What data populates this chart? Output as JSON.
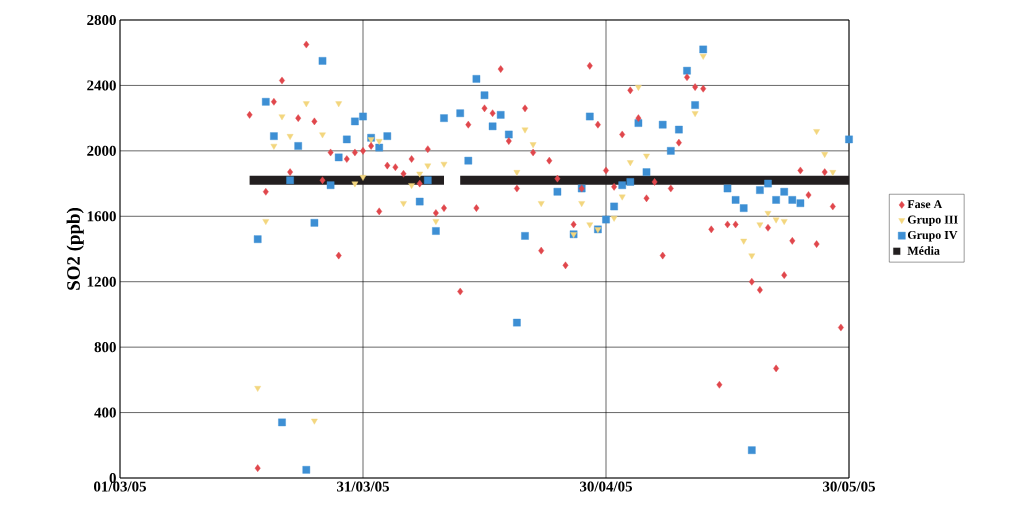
{
  "chart_data": {
    "type": "scatter",
    "ylabel": "SO2 (ppb)",
    "xlim": [
      "2005-03-01",
      "2005-05-30"
    ],
    "ylim": [
      0,
      2800
    ],
    "xticks": [
      {
        "value": "2005-03-01",
        "label": "01/03/05"
      },
      {
        "value": "2005-03-31",
        "label": "31/03/05"
      },
      {
        "value": "2005-04-30",
        "label": "30/04/05"
      },
      {
        "value": "2005-05-30",
        "label": "30/05/05"
      }
    ],
    "yticks": [
      0,
      400,
      800,
      1200,
      1600,
      2000,
      2400,
      2800
    ],
    "grid": true,
    "legend": "right",
    "series": [
      {
        "name": "Fase A",
        "color": "#e0474c",
        "marker": "diamond",
        "x": [
          "2005-03-17",
          "2005-03-18",
          "2005-03-19",
          "2005-03-20",
          "2005-03-21",
          "2005-03-22",
          "2005-03-23",
          "2005-03-24",
          "2005-03-25",
          "2005-03-26",
          "2005-03-27",
          "2005-03-28",
          "2005-03-29",
          "2005-03-30",
          "2005-03-31",
          "2005-04-01",
          "2005-04-02",
          "2005-04-03",
          "2005-04-04",
          "2005-04-05",
          "2005-04-06",
          "2005-04-07",
          "2005-04-08",
          "2005-04-09",
          "2005-04-10",
          "2005-04-12",
          "2005-04-13",
          "2005-04-14",
          "2005-04-15",
          "2005-04-16",
          "2005-04-17",
          "2005-04-18",
          "2005-04-19",
          "2005-04-20",
          "2005-04-21",
          "2005-04-22",
          "2005-04-23",
          "2005-04-24",
          "2005-04-25",
          "2005-04-26",
          "2005-04-27",
          "2005-04-28",
          "2005-04-29",
          "2005-04-30",
          "2005-05-01",
          "2005-05-02",
          "2005-05-03",
          "2005-05-04",
          "2005-05-05",
          "2005-05-06",
          "2005-05-07",
          "2005-05-08",
          "2005-05-09",
          "2005-05-10",
          "2005-05-11",
          "2005-05-12",
          "2005-05-13",
          "2005-05-14",
          "2005-05-15",
          "2005-05-16",
          "2005-05-18",
          "2005-05-19",
          "2005-05-20",
          "2005-05-21",
          "2005-05-22",
          "2005-05-23",
          "2005-05-24",
          "2005-05-25",
          "2005-05-26",
          "2005-05-27",
          "2005-05-28",
          "2005-05-29"
        ],
        "values": [
          2220,
          60,
          1750,
          2300,
          2430,
          1870,
          2200,
          2650,
          2180,
          1820,
          1990,
          1360,
          1950,
          1990,
          2000,
          2030,
          1630,
          1910,
          1900,
          1860,
          1950,
          1800,
          2010,
          1620,
          1650,
          1140,
          2160,
          1650,
          2260,
          2230,
          2500,
          2060,
          1770,
          2260,
          1990,
          1390,
          1940,
          1830,
          1300,
          1550,
          1770,
          2520,
          2160,
          1880,
          1780,
          2100,
          2370,
          2200,
          1710,
          1810,
          1360,
          1770,
          2050,
          2450,
          2390,
          2380,
          1520,
          570,
          1550,
          1550,
          1200,
          1150,
          1530,
          670,
          1240,
          1450,
          1880,
          1730,
          1430,
          1870,
          1660,
          920
        ]
      },
      {
        "name": "Grupo III",
        "color": "#f3d67e",
        "marker": "triangle",
        "x": [
          "2005-03-18",
          "2005-03-19",
          "2005-03-20",
          "2005-03-21",
          "2005-03-22",
          "2005-03-24",
          "2005-03-25",
          "2005-03-26",
          "2005-03-28",
          "2005-03-30",
          "2005-03-31",
          "2005-04-01",
          "2005-04-02",
          "2005-04-05",
          "2005-04-06",
          "2005-04-07",
          "2005-04-08",
          "2005-04-09",
          "2005-04-10",
          "2005-04-19",
          "2005-04-20",
          "2005-04-21",
          "2005-04-22",
          "2005-04-26",
          "2005-04-27",
          "2005-04-28",
          "2005-04-29",
          "2005-05-01",
          "2005-05-02",
          "2005-05-03",
          "2005-05-04",
          "2005-05-05",
          "2005-05-11",
          "2005-05-12",
          "2005-05-17",
          "2005-05-18",
          "2005-05-19",
          "2005-05-20",
          "2005-05-21",
          "2005-05-22",
          "2005-05-26",
          "2005-05-27",
          "2005-05-28"
        ],
        "values": [
          550,
          1570,
          2030,
          2210,
          2090,
          2290,
          350,
          2100,
          2290,
          1800,
          1840,
          2070,
          2060,
          1680,
          1790,
          1860,
          1910,
          1570,
          1920,
          1870,
          2130,
          2040,
          1680,
          1490,
          1680,
          1550,
          1520,
          1590,
          1720,
          1930,
          2390,
          1970,
          2230,
          2580,
          1450,
          1360,
          1550,
          1620,
          1580,
          1570,
          2120,
          1980,
          1870
        ]
      },
      {
        "name": "Grupo IV",
        "color": "#3d8fd4",
        "marker": "square",
        "x": [
          "2005-03-18",
          "2005-03-19",
          "2005-03-20",
          "2005-03-21",
          "2005-03-22",
          "2005-03-23",
          "2005-03-24",
          "2005-03-25",
          "2005-03-26",
          "2005-03-27",
          "2005-03-28",
          "2005-03-29",
          "2005-03-30",
          "2005-03-31",
          "2005-04-01",
          "2005-04-02",
          "2005-04-03",
          "2005-04-07",
          "2005-04-08",
          "2005-04-09",
          "2005-04-10",
          "2005-04-12",
          "2005-04-13",
          "2005-04-14",
          "2005-04-15",
          "2005-04-16",
          "2005-04-17",
          "2005-04-18",
          "2005-04-19",
          "2005-04-20",
          "2005-04-24",
          "2005-04-26",
          "2005-04-27",
          "2005-04-28",
          "2005-04-29",
          "2005-04-30",
          "2005-05-01",
          "2005-05-02",
          "2005-05-03",
          "2005-05-04",
          "2005-05-05",
          "2005-05-07",
          "2005-05-08",
          "2005-05-09",
          "2005-05-10",
          "2005-05-11",
          "2005-05-12",
          "2005-05-15",
          "2005-05-16",
          "2005-05-17",
          "2005-05-18",
          "2005-05-19",
          "2005-05-20",
          "2005-05-21",
          "2005-05-22",
          "2005-05-23",
          "2005-05-24",
          "2005-05-30"
        ],
        "values": [
          1460,
          2300,
          2090,
          340,
          1820,
          2030,
          50,
          1560,
          2550,
          1790,
          1960,
          2070,
          2180,
          2210,
          2080,
          2020,
          2090,
          1690,
          1820,
          1510,
          2200,
          2230,
          1940,
          2440,
          2340,
          2150,
          2220,
          2100,
          950,
          1480,
          1750,
          1490,
          1770,
          2210,
          1520,
          1580,
          1660,
          1790,
          1810,
          2170,
          1870,
          2160,
          2000,
          2130,
          2490,
          2280,
          2620,
          1770,
          1700,
          1650,
          170,
          1760,
          1800,
          1700,
          1750,
          1700,
          1680,
          2070
        ]
      },
      {
        "name": "Média",
        "color": "#231f20",
        "type": "line",
        "line_style": "solid",
        "x": [
          "2005-03-17",
          "2005-04-10",
          "2005-04-11",
          "2005-04-12",
          "2005-05-30"
        ],
        "values": [
          1820,
          1820,
          null,
          1820,
          1820
        ]
      }
    ]
  }
}
